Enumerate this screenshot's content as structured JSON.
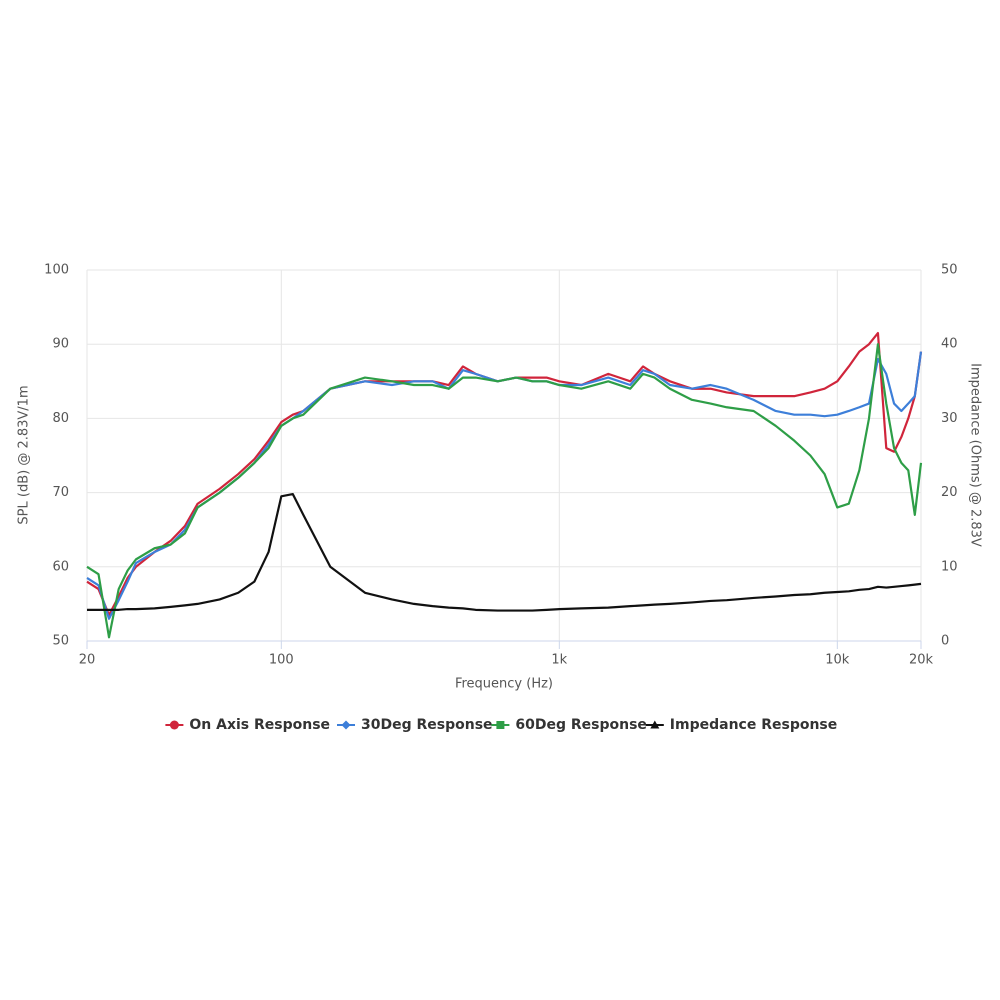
{
  "chart_data": {
    "type": "line",
    "xlabel": "Frequency (Hz)",
    "ylabel": "SPL (dB) @ 2.83V/1m",
    "y2label": "Impedance (Ohms) @ 2.83V",
    "xscale": "log",
    "grid": true,
    "legend": "bottom",
    "xlim": [
      20,
      20000
    ],
    "xticks": [
      20,
      100,
      {
        "value": 1000,
        "label": "1k"
      },
      {
        "value": 10000,
        "label": "10k"
      },
      {
        "value": 20000,
        "label": "20k"
      }
    ],
    "ylim": [
      50,
      100
    ],
    "yticks": [
      50,
      60,
      70,
      80,
      90,
      100
    ],
    "y2lim": [
      0,
      50
    ],
    "y2ticks": [
      0,
      10,
      20,
      30,
      40,
      50
    ],
    "x": [
      20,
      22,
      24,
      26,
      28,
      30,
      35,
      40,
      45,
      50,
      60,
      70,
      80,
      90,
      100,
      110,
      120,
      150,
      200,
      250,
      300,
      350,
      400,
      450,
      500,
      600,
      700,
      800,
      900,
      1000,
      1200,
      1500,
      1800,
      2000,
      2200,
      2500,
      3000,
      3500,
      4000,
      5000,
      6000,
      7000,
      8000,
      9000,
      10000,
      11000,
      12000,
      13000,
      14000,
      15000,
      16000,
      17000,
      18000,
      19000,
      20000
    ],
    "series": [
      {
        "name": "On Axis Response",
        "color": "#d0253b",
        "marker": "circle",
        "values": [
          58,
          57,
          53.5,
          56,
          58.5,
          60,
          62,
          63.5,
          65.5,
          68.5,
          70.5,
          72.5,
          74.5,
          77,
          79.5,
          80.5,
          81,
          84,
          85,
          85,
          85,
          85,
          84.5,
          87,
          86,
          85,
          85.5,
          85.5,
          85.5,
          85,
          84.5,
          86,
          85,
          87,
          86,
          85,
          84,
          84,
          83.5,
          83,
          83,
          83,
          83.5,
          84,
          85,
          87,
          89,
          90,
          91.5,
          76,
          75.5,
          77.5,
          80,
          83,
          89
        ]
      },
      {
        "name": "30Deg Response",
        "color": "#3d7fd9",
        "marker": "diamond",
        "values": [
          58.5,
          57.5,
          53,
          55.5,
          58,
          60.5,
          62,
          63,
          65,
          68,
          70,
          72,
          74,
          76.5,
          79,
          80,
          81,
          84,
          85,
          84.5,
          85,
          85,
          84,
          86.5,
          86,
          85,
          85.5,
          85,
          85,
          84.5,
          84.5,
          85.5,
          84.5,
          86.5,
          86,
          84.5,
          84,
          84.5,
          84,
          82.5,
          81,
          80.5,
          80.5,
          80.3,
          80.5,
          81,
          81.5,
          82,
          88,
          86,
          82,
          81,
          82,
          83,
          89
        ]
      },
      {
        "name": "60Deg Response",
        "color": "#2e9e47",
        "marker": "square",
        "values": [
          60,
          59,
          50.5,
          57,
          59.5,
          61,
          62.5,
          63,
          64.5,
          68,
          70,
          72,
          74,
          76,
          79,
          80,
          80.5,
          84,
          85.5,
          85,
          84.5,
          84.5,
          84,
          85.5,
          85.5,
          85,
          85.5,
          85,
          85,
          84.5,
          84,
          85,
          84,
          86,
          85.5,
          84,
          82.5,
          82,
          81.5,
          81,
          79,
          77,
          75,
          72.5,
          68,
          68.5,
          73,
          80,
          90,
          82,
          76,
          74,
          73,
          67,
          74
        ]
      },
      {
        "name": "Impedance Response",
        "color": "#111111",
        "marker": "triangle",
        "axis": "y2",
        "values": [
          4.2,
          4.2,
          4.2,
          4.2,
          4.3,
          4.3,
          4.4,
          4.6,
          4.8,
          5,
          5.6,
          6.5,
          8,
          12,
          19.5,
          19.8,
          17,
          10,
          6.5,
          5.6,
          5,
          4.7,
          4.5,
          4.4,
          4.2,
          4.1,
          4.1,
          4.1,
          4.2,
          4.3,
          4.4,
          4.5,
          4.7,
          4.8,
          4.9,
          5,
          5.2,
          5.4,
          5.5,
          5.8,
          6,
          6.2,
          6.3,
          6.5,
          6.6,
          6.7,
          6.9,
          7,
          7.3,
          7.2,
          7.3,
          7.4,
          7.5,
          7.6,
          7.7
        ]
      }
    ]
  }
}
